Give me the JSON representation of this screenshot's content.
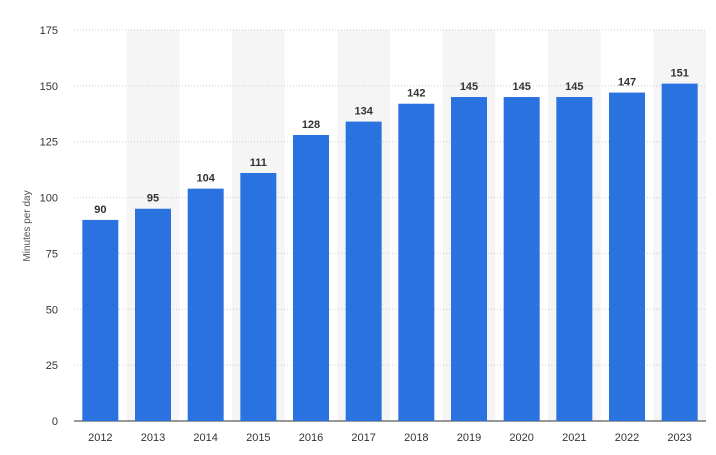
{
  "chart_data": {
    "type": "bar",
    "title": "",
    "xlabel": "",
    "ylabel": "Minutes per day",
    "categories": [
      "2012",
      "2013",
      "2014",
      "2015",
      "2016",
      "2017",
      "2018",
      "2019",
      "2020",
      "2021",
      "2022",
      "2023"
    ],
    "values": [
      90,
      95,
      104,
      111,
      128,
      134,
      142,
      145,
      145,
      145,
      147,
      151
    ],
    "ylim": [
      0,
      175
    ],
    "yticks": [
      0,
      25,
      50,
      75,
      100,
      125,
      150,
      175
    ],
    "grid": true,
    "legend": "none",
    "colors": {
      "bar": "#2a72df",
      "alt_band": "#f5f5f5",
      "grid": "#cccccc",
      "text": "#333333"
    }
  }
}
